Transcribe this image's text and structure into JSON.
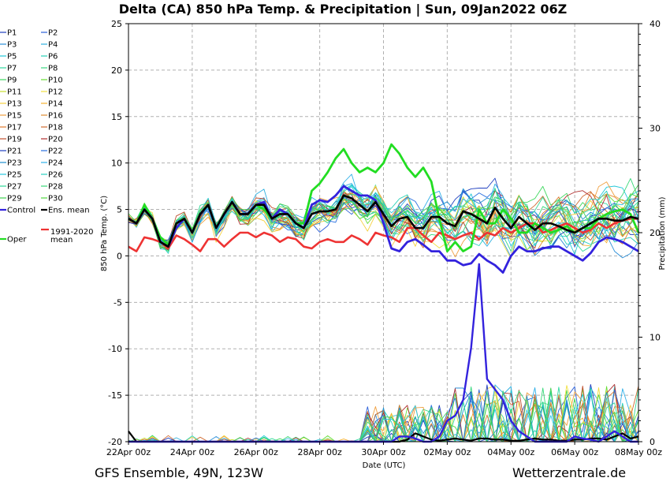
{
  "chart_data": {
    "type": "line",
    "title": "Delta  (CA)  850 hPa Temp. & Precipitation | Sun, 09Jan2022 06Z",
    "xlabel": "Date (UTC)",
    "ylabel": "850 hPa Temp. (°C)",
    "y2label": "Precipitation (mm)",
    "ylim": [
      -20,
      25
    ],
    "y2lim": [
      0,
      40
    ],
    "xlim_days": [
      0,
      16
    ],
    "grid": true,
    "x_ticks": [
      {
        "day": 0,
        "label": "22Apr 00z"
      },
      {
        "day": 2,
        "label": "24Apr 00z"
      },
      {
        "day": 4,
        "label": "26Apr 00z"
      },
      {
        "day": 6,
        "label": "28Apr 00z"
      },
      {
        "day": 8,
        "label": "30Apr 00z"
      },
      {
        "day": 10,
        "label": "02May 00z"
      },
      {
        "day": 12,
        "label": "04May 00z"
      },
      {
        "day": 14,
        "label": "06May 00z"
      },
      {
        "day": 16,
        "label": "08May 00z"
      }
    ],
    "y_ticks": [
      -20,
      -15,
      -10,
      -5,
      0,
      5,
      10,
      15,
      20,
      25
    ],
    "y2_ticks": [
      0,
      10,
      20,
      30,
      40
    ],
    "legend": [
      {
        "name": "P1",
        "color": "#1f3fbf"
      },
      {
        "name": "P2",
        "color": "#2a5fd8"
      },
      {
        "name": "P3",
        "color": "#2c8fd8"
      },
      {
        "name": "P4",
        "color": "#2fb0e0"
      },
      {
        "name": "P5",
        "color": "#22c8d8"
      },
      {
        "name": "P6",
        "color": "#26d0b8"
      },
      {
        "name": "P7",
        "color": "#30d8a0"
      },
      {
        "name": "P8",
        "color": "#3ad880"
      },
      {
        "name": "P9",
        "color": "#40d860"
      },
      {
        "name": "P10",
        "color": "#66dd33"
      },
      {
        "name": "P11",
        "color": "#c8e030"
      },
      {
        "name": "P12",
        "color": "#f0e040"
      },
      {
        "name": "P13",
        "color": "#f5d040"
      },
      {
        "name": "P14",
        "color": "#f5b030"
      },
      {
        "name": "P15",
        "color": "#f0a040"
      },
      {
        "name": "P16",
        "color": "#e08a30"
      },
      {
        "name": "P17",
        "color": "#e07a30"
      },
      {
        "name": "P18",
        "color": "#d06a30"
      },
      {
        "name": "P19",
        "color": "#c05030"
      },
      {
        "name": "P20",
        "color": "#b03030"
      },
      {
        "name": "P21",
        "color": "#2040c0"
      },
      {
        "name": "P22",
        "color": "#2a70e0"
      },
      {
        "name": "P23",
        "color": "#2090d0"
      },
      {
        "name": "P24",
        "color": "#30b0e8"
      },
      {
        "name": "P25",
        "color": "#28c8e0"
      },
      {
        "name": "P26",
        "color": "#28d0c0"
      },
      {
        "name": "P27",
        "color": "#30d898"
      },
      {
        "name": "P28",
        "color": "#38d878"
      },
      {
        "name": "P29",
        "color": "#40d050"
      },
      {
        "name": "P30",
        "color": "#50d840"
      },
      {
        "name": "Control",
        "color": "#3322dd"
      },
      {
        "name": "Ens. mean",
        "color": "#000000"
      },
      {
        "name": "1991-2020 mean",
        "color": "#ee3333"
      },
      {
        "name": "Oper",
        "color": "#22dd22"
      }
    ],
    "highlight_series": [
      {
        "name": "Oper",
        "color": "#22dd22",
        "values": [
          4,
          3.5,
          5.5,
          4,
          2,
          1.2,
          3,
          4,
          2.5,
          4.5,
          5.5,
          3,
          4.5,
          5.8,
          4.5,
          4.5,
          5.5,
          5,
          4,
          5,
          4.5,
          3.5,
          3.5,
          7,
          7.8,
          9,
          10.5,
          11.5,
          10,
          9,
          9.5,
          9,
          10,
          12,
          11,
          9.5,
          8.5,
          9.5,
          8,
          4,
          0.5,
          1.5,
          0.5,
          1,
          5,
          3.5,
          3.5,
          5,
          4,
          2.5,
          2.5,
          3.5,
          3,
          2.5,
          2.8,
          3.2,
          2.5,
          3,
          3,
          4,
          4.5,
          4.8,
          5,
          4.5,
          2.5
        ]
      },
      {
        "name": "Control",
        "color": "#3322dd",
        "values": [
          4,
          3.5,
          5,
          4,
          1.5,
          1,
          3,
          4,
          2.5,
          4.5,
          5.5,
          3,
          4.5,
          5.8,
          4.5,
          4.5,
          5.5,
          5.8,
          4,
          5,
          4.5,
          3.5,
          3,
          5.5,
          6,
          5.8,
          6.5,
          7.5,
          7,
          6.5,
          6.5,
          6,
          3.5,
          0.8,
          0.5,
          1.5,
          1.8,
          1.2,
          0.5,
          0.5,
          -0.5,
          -0.5,
          -1,
          -0.8,
          0.2,
          -0.5,
          -1,
          -1.8,
          0,
          1,
          0.5,
          0.5,
          0.8,
          1,
          1,
          0.5,
          0,
          -0.5,
          0.3,
          1.5,
          2,
          1.8,
          1.5,
          1,
          0.5
        ]
      },
      {
        "name": "Ens. mean",
        "color": "#000000",
        "values": [
          4,
          3.5,
          5,
          4,
          1.5,
          1,
          3.5,
          4,
          2.5,
          4.5,
          5.5,
          3,
          4.5,
          5.8,
          4.5,
          4.5,
          5.5,
          5.5,
          4,
          4.5,
          4.5,
          3.5,
          3,
          4.5,
          4.8,
          4.8,
          5,
          6.5,
          6.2,
          5.5,
          4.8,
          5.8,
          4.5,
          3.2,
          4,
          4.2,
          3,
          3,
          4.2,
          4.2,
          3.5,
          3.2,
          4.8,
          4.5,
          4,
          3.5,
          5.2,
          4,
          3,
          4.2,
          3.5,
          2.8,
          3.5,
          3.5,
          3.2,
          2.8,
          2.5,
          3,
          3.5,
          4,
          4,
          3.8,
          3.8,
          4.2,
          4
        ]
      },
      {
        "name": "1991-2020 mean",
        "color": "#ee3333",
        "values": [
          1,
          0.5,
          2,
          1.8,
          1.5,
          0.8,
          2.2,
          1.8,
          1.2,
          0.5,
          1.8,
          1.8,
          1,
          1.8,
          2.5,
          2.5,
          2,
          2.5,
          2.2,
          1.5,
          2,
          1.8,
          1,
          0.8,
          1.5,
          1.8,
          1.5,
          1.5,
          2.2,
          1.8,
          1.2,
          2.5,
          2.2,
          2,
          1.5,
          3,
          3,
          2.2,
          1.5,
          2.5,
          2.2,
          1.8,
          2.2,
          2.5,
          1.8,
          2.5,
          2.2,
          3,
          2.5,
          3,
          3.5,
          3.5,
          2.5,
          2.8,
          3.2,
          3.5,
          3,
          2.5,
          2.8,
          3.5,
          3,
          3.5,
          3.8,
          4,
          4
        ]
      }
    ],
    "highlight_control_precip_mm": [
      0,
      0,
      0,
      0,
      0,
      0,
      0,
      0,
      0,
      0,
      0,
      0,
      0,
      0,
      0,
      0,
      0,
      0,
      0,
      0,
      0,
      0,
      0,
      0,
      0,
      0,
      0,
      0,
      0,
      0,
      0,
      0,
      0,
      0,
      0.5,
      0.5,
      0.3,
      0,
      0,
      0.5,
      2,
      2.5,
      4,
      9,
      17,
      6,
      5,
      4,
      2,
      1,
      0.5,
      0,
      0,
      0,
      0,
      0,
      0.5,
      0.3,
      0.2,
      0,
      0.5,
      1,
      0.5,
      0,
      0
    ],
    "mean_precip_mm": [
      1,
      0,
      0,
      0,
      0,
      0,
      0,
      0,
      0,
      0,
      0,
      0,
      0,
      0,
      0,
      0,
      0,
      0,
      0,
      0,
      0,
      0,
      0,
      0,
      0,
      0,
      0,
      0,
      0,
      0,
      0,
      0,
      0,
      0,
      0,
      0.2,
      0.8,
      0.5,
      0.2,
      0.1,
      0.2,
      0.3,
      0.2,
      0.1,
      0.3,
      0.3,
      0.2,
      0.2,
      0.1,
      0.1,
      0.2,
      0.3,
      0.2,
      0.2,
      0.1,
      0.1,
      0.2,
      0.2,
      0.3,
      0.3,
      0.2,
      0.5,
      0.8,
      0.3,
      0.5
    ]
  },
  "footer": {
    "left": "GFS Ensemble, 49N, 123W",
    "right": "Wetterzentrale.de"
  }
}
